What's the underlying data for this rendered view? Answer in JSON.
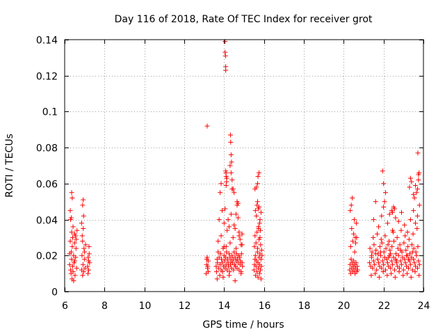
{
  "chart_data": {
    "type": "scatter",
    "title": "Day 116 of 2018, Rate Of TEC Index for receiver grot",
    "xlabel": "GPS time / hours",
    "ylabel": "ROTI / TECUs",
    "xlim": [
      6,
      24
    ],
    "ylim": [
      0,
      0.14
    ],
    "x_ticks": [
      6,
      8,
      10,
      12,
      14,
      16,
      18,
      20,
      22,
      24
    ],
    "x_tick_labels": [
      "6",
      "8",
      "10",
      "12",
      "14",
      "16",
      "18",
      "20",
      "22",
      "24"
    ],
    "y_ticks": [
      0,
      0.02,
      0.04,
      0.06,
      0.08,
      0.1,
      0.12,
      0.14
    ],
    "y_tick_labels": [
      "0",
      "0.02",
      "0.04",
      "0.06",
      "0.08",
      "0.1",
      "0.12",
      "0.14"
    ],
    "grid": true,
    "marker": "+",
    "color": "#ff0000",
    "series": [
      {
        "name": "ROTI",
        "x": [
          6.25,
          6.28,
          6.3,
          6.3,
          6.32,
          6.33,
          6.35,
          6.35,
          6.37,
          6.38,
          6.4,
          6.4,
          6.42,
          6.45,
          6.47,
          6.5,
          6.52,
          6.55,
          6.57,
          6.6,
          6.28,
          6.35,
          6.42,
          6.5,
          6.58,
          6.38,
          6.45,
          6.33,
          6.5,
          6.25,
          6.62,
          6.55,
          6.85,
          6.87,
          6.9,
          6.9,
          6.92,
          6.93,
          6.95,
          6.97,
          7.0,
          7.02,
          6.88,
          6.95,
          7.0,
          6.9,
          6.85,
          7.05,
          6.93,
          7.15,
          7.18,
          7.2,
          7.22,
          7.25,
          7.17,
          7.23,
          7.2,
          13.1,
          13.12,
          13.15,
          13.17,
          13.2,
          13.2,
          13.13,
          13.18,
          13.15,
          13.6,
          13.62,
          13.65,
          13.67,
          13.7,
          13.72,
          13.75,
          13.78,
          13.8,
          13.82,
          13.85,
          13.87,
          13.9,
          13.92,
          13.95,
          13.97,
          14.0,
          14.02,
          14.05,
          14.07,
          14.1,
          14.12,
          14.15,
          14.17,
          14.2,
          14.22,
          14.25,
          14.27,
          14.3,
          14.32,
          14.35,
          14.37,
          14.4,
          14.42,
          14.45,
          14.47,
          14.5,
          14.52,
          14.55,
          14.57,
          14.6,
          14.62,
          14.65,
          14.67,
          14.7,
          14.72,
          14.75,
          14.78,
          14.8,
          14.82,
          14.85,
          14.87,
          14.9,
          14.92,
          13.7,
          13.85,
          14.0,
          14.15,
          14.3,
          14.45,
          14.6,
          14.75,
          14.9,
          13.65,
          13.95,
          14.25,
          14.55,
          14.85,
          13.75,
          14.05,
          14.35,
          14.65,
          13.8,
          14.1,
          14.4,
          14.7,
          14.05,
          14.05,
          14.07,
          14.08,
          14.08,
          14.1,
          14.1,
          14.12,
          14.08,
          14.13,
          14.32,
          14.33,
          14.35,
          14.37,
          14.3,
          14.35,
          14.4,
          14.45,
          14.5,
          13.85,
          13.9,
          14.0,
          14.2,
          14.25,
          14.6,
          14.65,
          14.7,
          14.55,
          14.75,
          14.8,
          14.85,
          14.9,
          14.5,
          14.1,
          15.5,
          15.52,
          15.55,
          15.57,
          15.6,
          15.62,
          15.65,
          15.67,
          15.7,
          15.72,
          15.75,
          15.78,
          15.8,
          15.82,
          15.85,
          15.87,
          15.9,
          15.52,
          15.6,
          15.68,
          15.75,
          15.83,
          15.88,
          15.55,
          15.65,
          15.73,
          15.8,
          15.58,
          15.7,
          15.78,
          15.85,
          15.57,
          15.62,
          15.65,
          15.68,
          15.72,
          15.75,
          15.8,
          15.85,
          15.62,
          15.7,
          15.75,
          15.68,
          15.78,
          15.55,
          15.72,
          15.82,
          20.3,
          20.32,
          20.35,
          20.37,
          20.4,
          20.42,
          20.45,
          20.48,
          20.5,
          20.52,
          20.55,
          20.57,
          20.6,
          20.62,
          20.65,
          20.68,
          20.7,
          20.35,
          20.45,
          20.55,
          20.65,
          20.4,
          20.5,
          20.6,
          20.33,
          20.53,
          20.43,
          20.63,
          20.38,
          20.58,
          21.3,
          21.35,
          21.4,
          21.45,
          21.5,
          21.55,
          21.6,
          21.65,
          21.7,
          21.75,
          21.8,
          21.85,
          21.9,
          21.95,
          22.0,
          22.05,
          22.1,
          22.15,
          22.2,
          22.25,
          22.3,
          22.35,
          22.4,
          22.45,
          22.5,
          22.55,
          22.6,
          22.65,
          22.7,
          22.75,
          22.8,
          22.85,
          22.9,
          22.95,
          23.0,
          23.05,
          23.1,
          23.15,
          23.2,
          23.25,
          23.3,
          23.35,
          23.4,
          23.45,
          23.5,
          23.55,
          23.6,
          23.65,
          23.7,
          23.75,
          23.8,
          21.32,
          21.42,
          21.52,
          21.62,
          21.72,
          21.82,
          21.92,
          22.02,
          22.12,
          22.22,
          22.32,
          22.42,
          22.52,
          22.62,
          22.72,
          22.82,
          22.92,
          23.02,
          23.12,
          23.22,
          23.32,
          23.42,
          23.52,
          23.62,
          23.72,
          21.38,
          21.58,
          21.78,
          21.98,
          22.18,
          22.38,
          22.58,
          22.78,
          22.98,
          23.18,
          23.38,
          23.58,
          23.78,
          21.48,
          21.68,
          21.88,
          22.08,
          22.28,
          22.48,
          22.68,
          22.88,
          23.08,
          23.28,
          23.48,
          23.68,
          21.5,
          21.6,
          21.75,
          21.9,
          22.0,
          22.2,
          22.3,
          22.45,
          22.6,
          22.75,
          22.9,
          23.05,
          23.2,
          23.35,
          23.5,
          23.6,
          23.7,
          23.8,
          21.95,
          22.0,
          22.05,
          22.1,
          22.4,
          22.45,
          22.5,
          22.55,
          23.3,
          23.35,
          23.4,
          23.5,
          23.55,
          23.6,
          23.65,
          23.7,
          23.75,
          23.72,
          23.75,
          23.78,
          21.4,
          21.7,
          21.85,
          22.25,
          22.35,
          22.65,
          22.85,
          23.15,
          23.25,
          23.45
        ],
        "y": [
          0.015,
          0.028,
          0.012,
          0.04,
          0.01,
          0.022,
          0.018,
          0.033,
          0.007,
          0.025,
          0.014,
          0.03,
          0.011,
          0.02,
          0.016,
          0.027,
          0.009,
          0.019,
          0.024,
          0.013,
          0.045,
          0.055,
          0.036,
          0.032,
          0.029,
          0.052,
          0.006,
          0.041,
          0.017,
          0.021,
          0.034,
          0.031,
          0.012,
          0.02,
          0.009,
          0.028,
          0.015,
          0.035,
          0.011,
          0.024,
          0.018,
          0.013,
          0.031,
          0.042,
          0.022,
          0.048,
          0.038,
          0.026,
          0.051,
          0.014,
          0.019,
          0.012,
          0.025,
          0.016,
          0.01,
          0.021,
          0.017,
          0.01,
          0.015,
          0.019,
          0.013,
          0.017,
          0.011,
          0.018,
          0.014,
          0.092,
          0.014,
          0.011,
          0.018,
          0.016,
          0.022,
          0.013,
          0.019,
          0.009,
          0.015,
          0.021,
          0.012,
          0.018,
          0.016,
          0.011,
          0.024,
          0.014,
          0.02,
          0.017,
          0.013,
          0.019,
          0.015,
          0.022,
          0.012,
          0.018,
          0.016,
          0.014,
          0.021,
          0.011,
          0.019,
          0.015,
          0.017,
          0.013,
          0.02,
          0.016,
          0.018,
          0.012,
          0.022,
          0.015,
          0.019,
          0.014,
          0.017,
          0.021,
          0.013,
          0.018,
          0.016,
          0.02,
          0.012,
          0.019,
          0.015,
          0.017,
          0.011,
          0.021,
          0.016,
          0.014,
          0.028,
          0.031,
          0.025,
          0.034,
          0.027,
          0.03,
          0.024,
          0.033,
          0.026,
          0.007,
          0.008,
          0.009,
          0.006,
          0.01,
          0.04,
          0.046,
          0.043,
          0.048,
          0.055,
          0.059,
          0.057,
          0.049,
          0.139,
          0.133,
          0.131,
          0.125,
          0.123,
          0.066,
          0.064,
          0.061,
          0.067,
          0.063,
          0.087,
          0.083,
          0.076,
          0.072,
          0.07,
          0.066,
          0.062,
          0.057,
          0.055,
          0.06,
          0.045,
          0.038,
          0.04,
          0.036,
          0.043,
          0.05,
          0.041,
          0.035,
          0.031,
          0.029,
          0.026,
          0.032,
          0.037,
          0.025,
          0.012,
          0.015,
          0.018,
          0.02,
          0.014,
          0.017,
          0.011,
          0.022,
          0.016,
          0.013,
          0.019,
          0.015,
          0.021,
          0.012,
          0.018,
          0.014,
          0.02,
          0.025,
          0.027,
          0.024,
          0.029,
          0.026,
          0.023,
          0.031,
          0.033,
          0.035,
          0.03,
          0.009,
          0.008,
          0.01,
          0.007,
          0.045,
          0.042,
          0.048,
          0.05,
          0.046,
          0.047,
          0.04,
          0.044,
          0.058,
          0.064,
          0.066,
          0.06,
          0.038,
          0.057,
          0.036,
          0.034,
          0.012,
          0.015,
          0.01,
          0.018,
          0.013,
          0.016,
          0.011,
          0.014,
          0.017,
          0.012,
          0.015,
          0.01,
          0.013,
          0.016,
          0.011,
          0.014,
          0.012,
          0.025,
          0.028,
          0.022,
          0.03,
          0.035,
          0.032,
          0.027,
          0.045,
          0.04,
          0.052,
          0.038,
          0.048,
          0.03,
          0.016,
          0.014,
          0.019,
          0.013,
          0.017,
          0.015,
          0.021,
          0.012,
          0.018,
          0.016,
          0.014,
          0.02,
          0.013,
          0.017,
          0.015,
          0.019,
          0.012,
          0.018,
          0.016,
          0.014,
          0.02,
          0.013,
          0.017,
          0.015,
          0.019,
          0.012,
          0.018,
          0.016,
          0.014,
          0.02,
          0.013,
          0.017,
          0.015,
          0.019,
          0.012,
          0.018,
          0.016,
          0.014,
          0.02,
          0.013,
          0.017,
          0.015,
          0.019,
          0.012,
          0.018,
          0.016,
          0.014,
          0.02,
          0.013,
          0.017,
          0.015,
          0.024,
          0.022,
          0.026,
          0.023,
          0.021,
          0.025,
          0.027,
          0.022,
          0.024,
          0.026,
          0.023,
          0.025,
          0.028,
          0.021,
          0.024,
          0.026,
          0.022,
          0.027,
          0.023,
          0.025,
          0.021,
          0.026,
          0.024,
          0.022,
          0.025,
          0.009,
          0.01,
          0.008,
          0.011,
          0.009,
          0.01,
          0.008,
          0.011,
          0.009,
          0.01,
          0.008,
          0.011,
          0.009,
          0.03,
          0.032,
          0.029,
          0.031,
          0.028,
          0.033,
          0.03,
          0.034,
          0.031,
          0.029,
          0.032,
          0.035,
          0.04,
          0.05,
          0.036,
          0.042,
          0.047,
          0.038,
          0.043,
          0.034,
          0.041,
          0.039,
          0.044,
          0.037,
          0.033,
          0.04,
          0.045,
          0.038,
          0.042,
          0.048,
          0.067,
          0.06,
          0.05,
          0.055,
          0.045,
          0.044,
          0.047,
          0.046,
          0.058,
          0.063,
          0.061,
          0.054,
          0.052,
          0.059,
          0.055,
          0.057,
          0.065,
          0.077,
          0.062,
          0.066,
          0.02,
          0.018,
          0.022,
          0.019,
          0.021,
          0.017,
          0.023,
          0.02,
          0.018,
          0.022
        ]
      }
    ]
  }
}
